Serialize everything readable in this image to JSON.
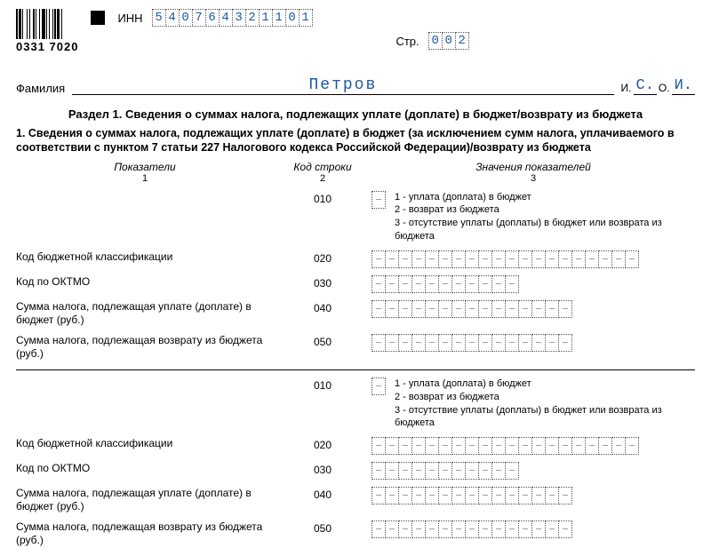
{
  "form_code": "0331 7020",
  "inn": {
    "label": "ИНН",
    "digits": [
      "5",
      "4",
      "0",
      "7",
      "6",
      "4",
      "3",
      "2",
      "1",
      "1",
      "0",
      "1"
    ]
  },
  "page": {
    "label": "Стр.",
    "digits": [
      "0",
      "0",
      "2"
    ]
  },
  "surname": {
    "label": "Фамилия",
    "value": "Петров"
  },
  "initials": {
    "i_label": "И.",
    "i_value": "С.",
    "o_label": "О.",
    "o_value": "И."
  },
  "section_title": "Раздел 1. Сведения о суммах налога, подлежащих уплате (доплате) в бюджет/возврату из бюджета",
  "section_sub": "1. Сведения о суммах налога, подлежащих уплате (доплате) в бюджет (за исключением сумм налога, уплачиваемого в соответствии с пунктом 7 статьи 227 Налогового кодекса Российской Федерации)/возврату из бюджета",
  "col_headers": {
    "c1": "Показатели",
    "c2": "Код строки",
    "c3": "Значения показателей"
  },
  "col_nums": {
    "c1": "1",
    "c2": "2",
    "c3": "3"
  },
  "legend": {
    "l1": "1 - уплата (доплата) в бюджет",
    "l2": "2 - возврат из бюджета",
    "l3": "3 - отсутствие уплаты (доплаты) в бюджет или возврата из бюджета"
  },
  "rows": [
    {
      "label": "",
      "code": "010",
      "cells": 1,
      "hasLegend": true
    },
    {
      "label": "Код бюджетной классификации",
      "code": "020",
      "cells": 20
    },
    {
      "label": "Код по ОКТМО",
      "code": "030",
      "cells": 11
    },
    {
      "label": "Сумма налога, подлежащая уплате (доплате) в бюджет (руб.)",
      "code": "040",
      "cells": 15
    },
    {
      "label": "Сумма налога, подлежащая возврату из бюджета (руб.)",
      "code": "050",
      "cells": 15
    }
  ],
  "styling": {
    "cell": {
      "w": 16,
      "h": 20,
      "border": "1px dotted #555"
    },
    "value_color": "#1e5aa0",
    "barcode_widths": [
      2,
      1,
      3,
      1,
      1,
      4,
      1,
      2,
      1,
      3,
      2,
      1,
      1,
      3,
      1,
      2,
      4,
      1,
      1,
      2,
      1,
      3,
      1,
      1,
      2,
      1,
      3,
      2,
      1,
      1
    ],
    "bg": "#ffffff"
  }
}
